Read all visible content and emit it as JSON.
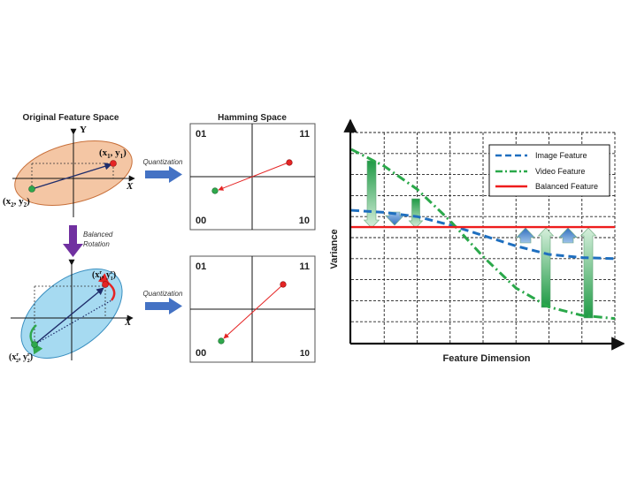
{
  "left_panel": {
    "original_title": "Original Feature Space",
    "y_axis": "Y",
    "x_axis": "X",
    "point1": "(x",
    "point1_sub1": "1",
    "point1_mid": ", y",
    "point1_sub2": "1",
    "point1_end": ")",
    "point2": "(x",
    "point2_sub1": "2",
    "point2_mid": ", y",
    "point2_sub2": "2",
    "point2_end": ")",
    "rot_point1": "(x",
    "rot_point1_sup1": "r",
    "rot_point1_sub1": "1",
    "rot_point1_mid": ", y",
    "rot_point1_sup2": "r",
    "rot_point1_sub2": "1",
    "rot_point1_end": ")",
    "rot_point2": "(x",
    "rot_point2_sup1": "r",
    "rot_point2_sub1": "2",
    "rot_point2_mid": ", y",
    "rot_point2_sup2": "r",
    "rot_point2_sub2": "2",
    "rot_point2_end": ")",
    "rotation_line1": "Balanced",
    "rotation_line2": "Rotation",
    "quantization_top": "Quantization",
    "quantization_bottom": "Quantization"
  },
  "hamming": {
    "title": "Hamming Space",
    "top": {
      "q01": "01",
      "q11": "11",
      "q00": "00",
      "q10": "10"
    },
    "bottom": {
      "q01": "01",
      "q11": "11",
      "q00": "00",
      "q10": "10"
    }
  },
  "chart_data": {
    "type": "line",
    "xlabel": "Feature Dimension",
    "ylabel": "Variance",
    "legend_position": "top-right",
    "grid": true,
    "series": [
      {
        "name": "Image Feature",
        "style": "dashed",
        "color": "#1f6fbf",
        "points": [
          [
            0,
            6.3
          ],
          [
            1,
            6.2
          ],
          [
            2,
            6.0
          ],
          [
            3,
            5.6
          ],
          [
            4,
            5.1
          ],
          [
            5,
            4.6
          ],
          [
            6,
            4.2
          ],
          [
            7,
            4.05
          ],
          [
            8,
            4.0
          ]
        ]
      },
      {
        "name": "Video Feature",
        "style": "dash-dot",
        "color": "#2aa84a",
        "points": [
          [
            0,
            9.2
          ],
          [
            1,
            8.4
          ],
          [
            2,
            7.3
          ],
          [
            3,
            5.8
          ],
          [
            4,
            4.1
          ],
          [
            5,
            2.6
          ],
          [
            6,
            1.7
          ],
          [
            7,
            1.3
          ],
          [
            8,
            1.15
          ]
        ]
      },
      {
        "name": "Balanced Feature",
        "style": "solid",
        "color": "#ee1c1c",
        "points": [
          [
            0,
            5.5
          ],
          [
            8,
            5.5
          ]
        ]
      }
    ],
    "grid_columns": 8,
    "grid_rows": 10,
    "ymax": 10
  },
  "colors": {
    "orange_ellipse": "#f4c6a4",
    "blue_ellipse": "#a6daf1",
    "green_point": "#2fa84c",
    "red_point": "#e52424",
    "arrow_blue": "#4472c4",
    "arrow_purple": "#7030a0",
    "green_arrow": "#2aa84a"
  }
}
